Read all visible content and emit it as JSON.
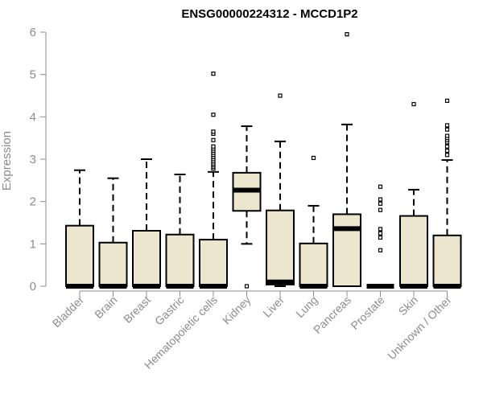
{
  "chart_data": {
    "type": "box",
    "title": "ENSG00000224312 - MCCD1P2",
    "ylabel": "Expression",
    "xlabel": "",
    "ylim": [
      0,
      6
    ],
    "yticks": [
      0,
      1,
      2,
      3,
      4,
      5,
      6
    ],
    "grid": false,
    "box_fill": "#ede6cf",
    "categories": [
      "Bladder",
      "Brain",
      "Breast",
      "Gastric",
      "Hematopoietic cells",
      "Kidney",
      "Liver",
      "Lung",
      "Pancreas",
      "Prostate",
      "Skin",
      "Unknown / Other"
    ],
    "boxes": [
      {
        "category": "Bladder",
        "whisker_low": 0,
        "q1": 0,
        "median": 0,
        "q3": 1.43,
        "whisker_high": 2.74,
        "outliers": []
      },
      {
        "category": "Brain",
        "whisker_low": 0,
        "q1": 0,
        "median": 0,
        "q3": 1.03,
        "whisker_high": 2.55,
        "outliers": []
      },
      {
        "category": "Breast",
        "whisker_low": 0,
        "q1": 0,
        "median": 0,
        "q3": 1.31,
        "whisker_high": 3.0,
        "outliers": []
      },
      {
        "category": "Gastric",
        "whisker_low": 0,
        "q1": 0,
        "median": 0,
        "q3": 1.22,
        "whisker_high": 2.64,
        "outliers": []
      },
      {
        "category": "Hematopoietic cells",
        "whisker_low": 0,
        "q1": 0,
        "median": 0,
        "q3": 1.1,
        "whisker_high": 2.7,
        "outliers": [
          2.78,
          2.82,
          2.86,
          2.9,
          2.95,
          3.0,
          3.05,
          3.1,
          3.15,
          3.2,
          3.25,
          3.3,
          3.45,
          3.6,
          3.65,
          4.05,
          5.02
        ]
      },
      {
        "category": "Kidney",
        "whisker_low": 1.0,
        "q1": 1.78,
        "median": 2.27,
        "q3": 2.68,
        "whisker_high": 3.78,
        "outliers": [
          0
        ]
      },
      {
        "category": "Liver",
        "whisker_low": 0,
        "q1": 0.04,
        "median": 0.1,
        "q3": 1.79,
        "whisker_high": 3.42,
        "outliers": [
          4.5
        ]
      },
      {
        "category": "Lung",
        "whisker_low": 0,
        "q1": 0,
        "median": 0,
        "q3": 1.01,
        "whisker_high": 1.9,
        "outliers": [
          3.03
        ]
      },
      {
        "category": "Pancreas",
        "whisker_low": 0,
        "q1": 0,
        "median": 1.36,
        "q3": 1.7,
        "whisker_high": 3.82,
        "outliers": [
          5.95
        ]
      },
      {
        "category": "Prostate",
        "whisker_low": 0,
        "q1": 0,
        "median": 0,
        "q3": 0,
        "whisker_high": 0,
        "outliers": [
          0.85,
          1.15,
          1.25,
          1.35,
          1.8,
          1.95,
          2.05,
          2.35
        ]
      },
      {
        "category": "Skin",
        "whisker_low": 0,
        "q1": 0,
        "median": 0,
        "q3": 1.66,
        "whisker_high": 2.28,
        "outliers": [
          4.3
        ]
      },
      {
        "category": "Unknown / Other",
        "whisker_low": 0,
        "q1": 0,
        "median": 0,
        "q3": 1.2,
        "whisker_high": 2.98,
        "outliers": [
          3.1,
          3.2,
          3.3,
          3.4,
          3.45,
          3.5,
          3.55,
          3.7,
          3.8,
          4.38
        ]
      }
    ]
  }
}
